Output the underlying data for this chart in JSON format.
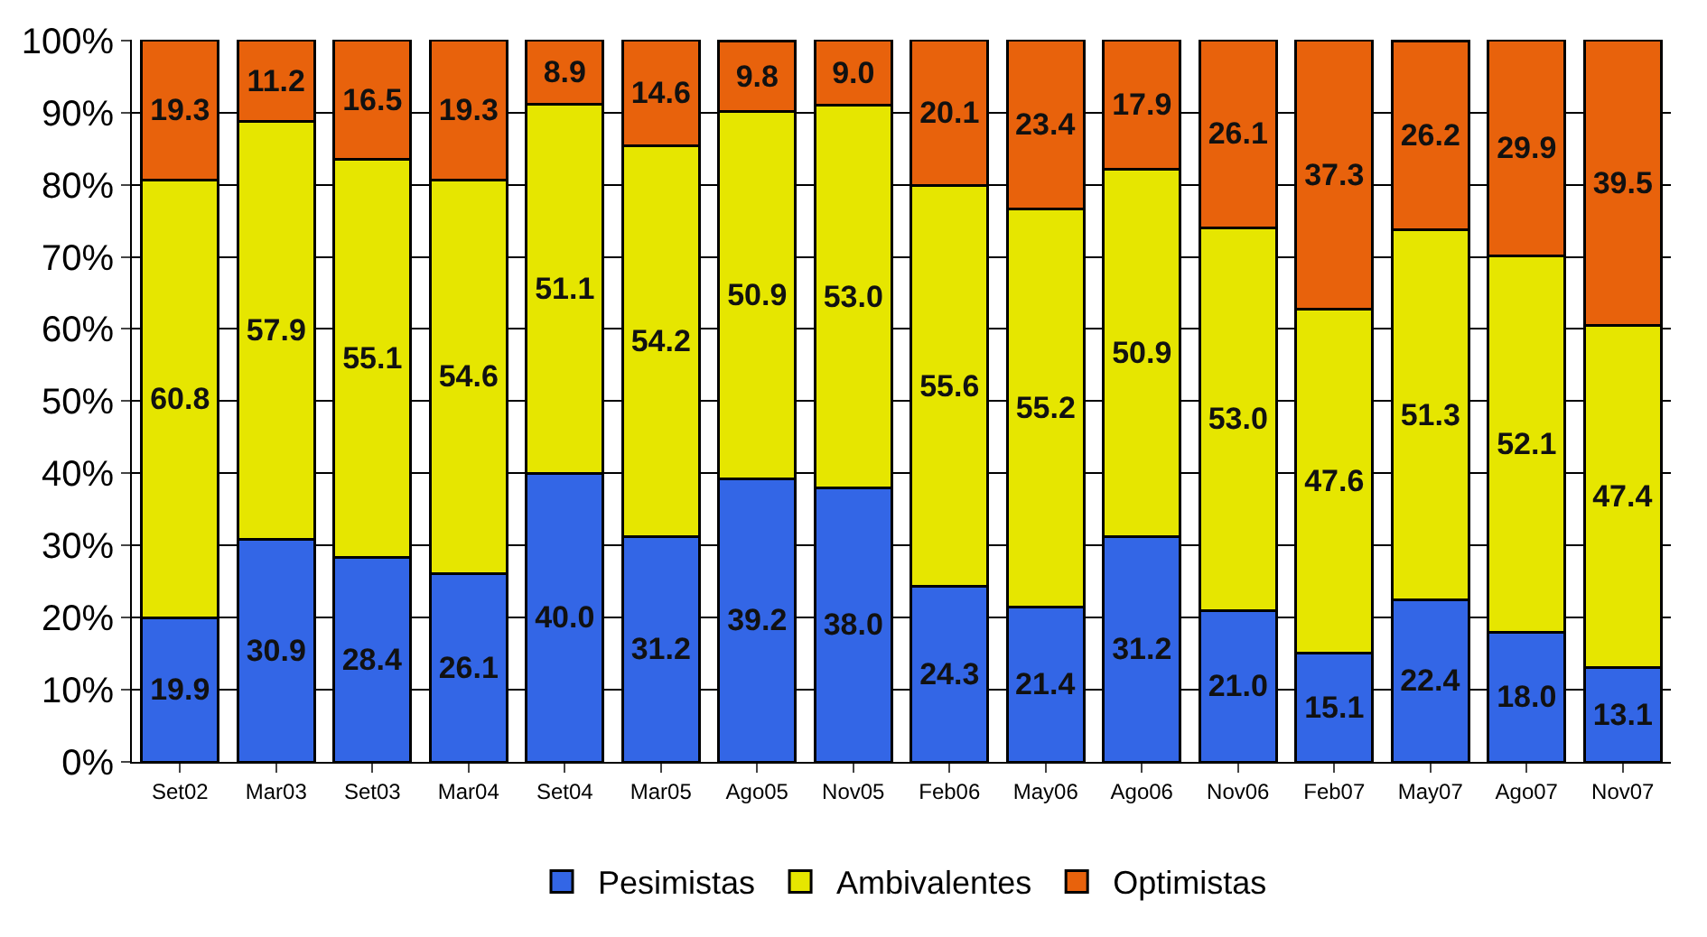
{
  "chart_data": {
    "type": "bar",
    "stacked": true,
    "categories": [
      "Set02",
      "Mar03",
      "Set03",
      "Mar04",
      "Set04",
      "Mar05",
      "Ago05",
      "Nov05",
      "Feb06",
      "May06",
      "Ago06",
      "Nov06",
      "Feb07",
      "May07",
      "Ago07",
      "Nov07"
    ],
    "series": [
      {
        "name": "Pesimistas",
        "color": "#3366e6",
        "values": [
          19.9,
          30.9,
          28.4,
          26.1,
          40.0,
          31.2,
          39.2,
          38.0,
          24.3,
          21.4,
          31.2,
          21.0,
          15.1,
          22.4,
          18.0,
          13.1
        ],
        "value_labels": [
          "19.9",
          "30.9",
          "28.4",
          "26.1",
          "40.0",
          "31.2",
          "39.2",
          "38.0",
          "24.3",
          "21.4",
          "31.2",
          "21.0",
          "15.1",
          "22.4",
          "18.0",
          "13.1"
        ]
      },
      {
        "name": "Ambivalentes",
        "color": "#e6e600",
        "values": [
          60.8,
          57.9,
          55.1,
          54.6,
          51.1,
          54.2,
          50.9,
          53.0,
          55.6,
          55.2,
          50.9,
          53.0,
          47.6,
          51.3,
          52.1,
          47.4
        ],
        "value_labels": [
          "60.8",
          "57.9",
          "55.1",
          "54.6",
          "51.1",
          "54.2",
          "50.9",
          "53.0",
          "55.6",
          "55.2",
          "50.9",
          "53.0",
          "47.6",
          "51.3",
          "52.1",
          "47.4"
        ]
      },
      {
        "name": "Optimistas",
        "color": "#e8620c",
        "values": [
          19.3,
          11.2,
          16.5,
          19.3,
          8.9,
          14.6,
          9.8,
          9.0,
          20.1,
          23.4,
          17.9,
          26.1,
          37.3,
          26.2,
          29.9,
          39.5
        ],
        "value_labels": [
          "19.3",
          "11.2",
          "16.5",
          "19.3",
          "8.9",
          "14.6",
          "9.8",
          "9.0",
          "20.1",
          "23.4",
          "17.9",
          "26.1",
          "37.3",
          "26.2",
          "29.9",
          "39.5"
        ]
      }
    ],
    "ylim": [
      0,
      100.1
    ],
    "yticks": [
      {
        "value": 0,
        "label": "0%"
      },
      {
        "value": 10,
        "label": "10%"
      },
      {
        "value": 20,
        "label": "20%"
      },
      {
        "value": 30,
        "label": "30%"
      },
      {
        "value": 40,
        "label": "40%"
      },
      {
        "value": 50,
        "label": "50%"
      },
      {
        "value": 60,
        "label": "60%"
      },
      {
        "value": 70,
        "label": "70%"
      },
      {
        "value": 80,
        "label": "80%"
      },
      {
        "value": 90,
        "label": "90%"
      },
      {
        "value": 100,
        "label": "100%"
      }
    ],
    "grid": "y",
    "legend": "bottom"
  }
}
